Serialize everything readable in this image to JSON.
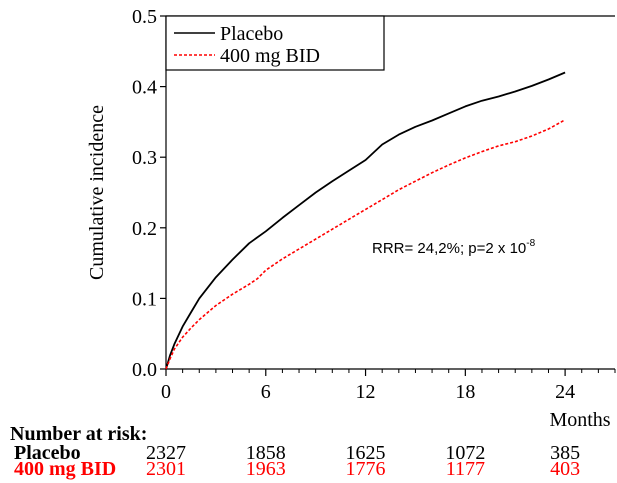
{
  "chart_data": {
    "type": "line",
    "ylabel": "Cumulative incidence",
    "xlabel": "Months",
    "xlim": [
      0,
      27
    ],
    "ylim": [
      0,
      0.5
    ],
    "x_ticks": [
      0,
      6,
      12,
      18,
      24
    ],
    "y_ticks": [
      0.0,
      0.1,
      0.2,
      0.3,
      0.4,
      0.5
    ],
    "legend_position": "top-left",
    "annotation": {
      "text": "RRR= 24,2%; p=2 x 10",
      "superscript": "-8"
    },
    "series": [
      {
        "name": "Placebo",
        "color": "#000000",
        "style": "solid",
        "x": [
          0,
          0.25,
          0.5,
          1,
          1.5,
          2,
          3,
          4,
          5,
          6,
          7,
          8,
          9,
          10,
          11,
          12,
          13,
          14,
          15,
          16,
          17,
          18,
          19,
          20,
          21,
          22,
          23,
          24
        ],
        "y": [
          0,
          0.02,
          0.035,
          0.06,
          0.08,
          0.1,
          0.13,
          0.155,
          0.178,
          0.195,
          0.214,
          0.232,
          0.25,
          0.266,
          0.281,
          0.296,
          0.318,
          0.332,
          0.343,
          0.352,
          0.362,
          0.372,
          0.38,
          0.386,
          0.393,
          0.401,
          0.41,
          0.42
        ]
      },
      {
        "name": "400 mg BID",
        "color": "#ff0000",
        "style": "dashed",
        "x": [
          0,
          0.25,
          0.5,
          1,
          1.5,
          2,
          3,
          4,
          5,
          5.5,
          6,
          7,
          8,
          9,
          10,
          11,
          12,
          13,
          14,
          15,
          16,
          17,
          18,
          19,
          20,
          21,
          22,
          23,
          24
        ],
        "y": [
          0,
          0.015,
          0.028,
          0.045,
          0.058,
          0.07,
          0.09,
          0.106,
          0.12,
          0.128,
          0.14,
          0.156,
          0.17,
          0.184,
          0.198,
          0.212,
          0.226,
          0.24,
          0.254,
          0.266,
          0.278,
          0.289,
          0.299,
          0.308,
          0.316,
          0.322,
          0.33,
          0.34,
          0.353
        ]
      }
    ]
  },
  "risk_table": {
    "title": "Number at risk:",
    "rows": [
      {
        "label": "Placebo",
        "color": "#000000",
        "values": [
          "2327",
          "1858",
          "1625",
          "1072",
          "385"
        ]
      },
      {
        "label": "400 mg BID",
        "color": "#ff0000",
        "values": [
          "2301",
          "1963",
          "1776",
          "1177",
          "403"
        ]
      }
    ]
  }
}
